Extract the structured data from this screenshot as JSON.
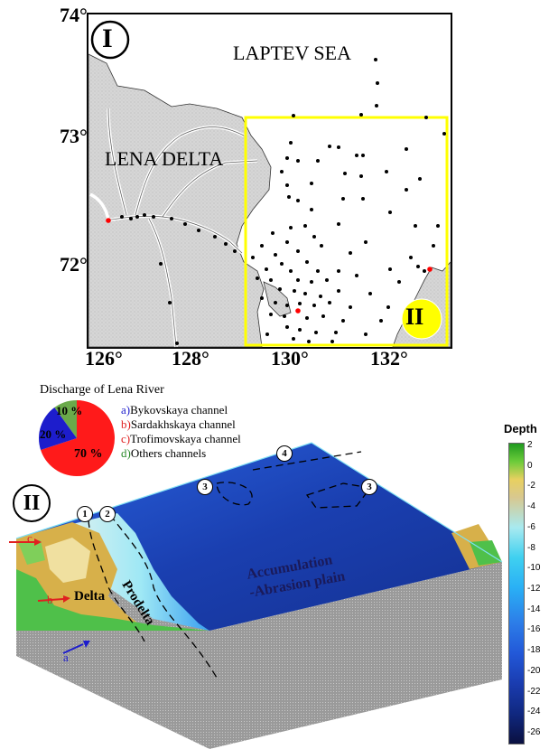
{
  "panel_1": {
    "marker": "I",
    "sea_label": "LAPTEV SEA",
    "delta_label": "LENA DELTA",
    "inset_marker": "II",
    "lat_labels": [
      "74°",
      "73°",
      "72°"
    ],
    "lon_labels": [
      "126°",
      "128°",
      "130°",
      "132°"
    ],
    "colors": {
      "land": "#d8d8d8",
      "box": "#ffff00",
      "station": "#000000",
      "highlight": "#ff0000"
    }
  },
  "discharge": {
    "title": "Discharge of Lena River",
    "pie_values": [
      {
        "key": "a",
        "name": "Bykovskaya channel",
        "percent": 20,
        "label": "20 %",
        "color": "#1d1dcc"
      },
      {
        "key": "b",
        "name": "Sardakhskaya channel",
        "percent": 0,
        "label": "",
        "color": "#e02020"
      },
      {
        "key": "c",
        "name": "Trofimovskaya channel",
        "percent": 70,
        "label": "70 %",
        "color": "#ff1a1a"
      },
      {
        "key": "d",
        "name": "Others channels",
        "percent": 10,
        "label": "10 %",
        "color": "#6aaa4a"
      }
    ],
    "legend": [
      {
        "prefix": "a)",
        "text": "Bykovskaya channel",
        "color": "#1d1dcc"
      },
      {
        "prefix": "b)",
        "text": "Sardakhskaya channel",
        "color": "#e02020"
      },
      {
        "prefix": "c)",
        "text": "Trofimovskaya channel",
        "color": "#e02020"
      },
      {
        "prefix": "d)",
        "text": "Others channels",
        "color": "#2a8a2a"
      }
    ]
  },
  "panel_2": {
    "marker": "II",
    "delta_label": "Delta",
    "prodelta_label": "Prodelta",
    "plain_label_1": "Accumulation",
    "plain_label_2": "-Abrasion plain",
    "zone_markers": [
      "1",
      "2",
      "3",
      "4",
      "3"
    ],
    "channel_arrows": [
      "c",
      "b",
      "a"
    ]
  },
  "depth_scale": {
    "title": "Depth",
    "ticks": [
      "2",
      "0",
      "-2",
      "-4",
      "-6",
      "-8",
      "-10",
      "-12",
      "-14",
      "-16",
      "-18",
      "-20",
      "-22",
      "-24",
      "-26"
    ]
  }
}
